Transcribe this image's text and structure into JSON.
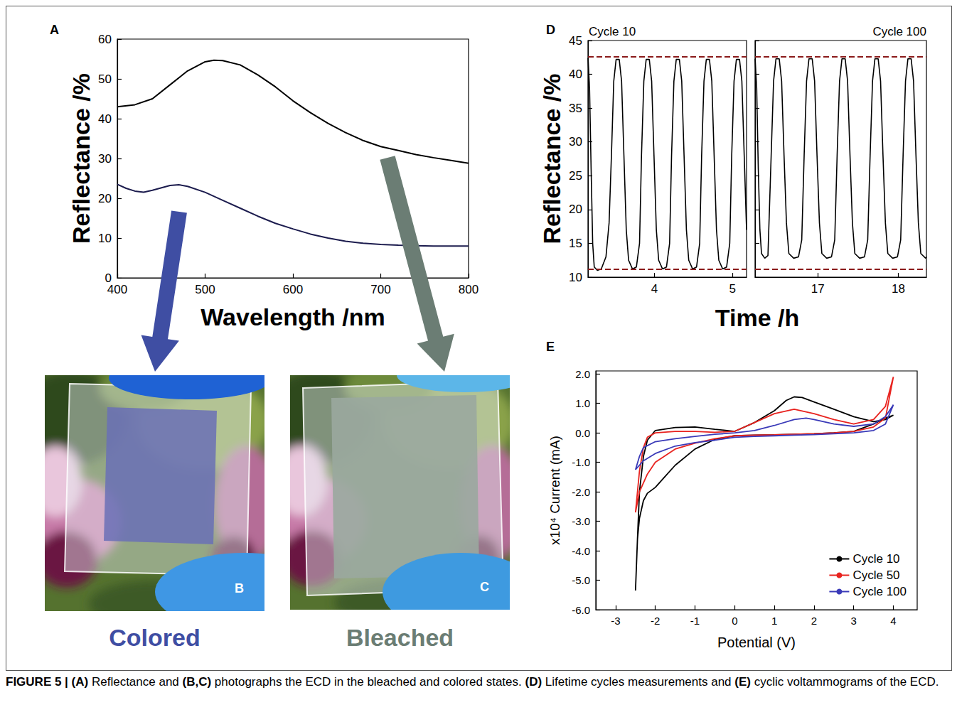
{
  "chart_data": [
    {
      "panel": "A",
      "type": "line",
      "xlabel": "Wavelength /nm",
      "ylabel": "Reflectance /%",
      "xlim": [
        400,
        800
      ],
      "xticks": [
        400,
        500,
        600,
        700,
        800
      ],
      "ylim": [
        0,
        60
      ],
      "yticks": [
        0,
        10,
        20,
        30,
        40,
        50,
        60
      ],
      "grid": false,
      "series": [
        {
          "color": "#000000",
          "x": [
            400,
            420,
            440,
            460,
            480,
            500,
            510,
            520,
            540,
            560,
            580,
            600,
            620,
            640,
            660,
            680,
            700,
            720,
            740,
            760,
            780,
            800
          ],
          "values": [
            43,
            43.5,
            45,
            48.5,
            52,
            54.3,
            54.7,
            54.6,
            53.5,
            51,
            48,
            44.5,
            41.5,
            38.8,
            36.5,
            34.5,
            33,
            32,
            31,
            30.2,
            29.5,
            28.8
          ]
        },
        {
          "color": "#1c1c4e",
          "x": [
            400,
            410,
            420,
            430,
            440,
            460,
            470,
            480,
            500,
            520,
            540,
            560,
            580,
            600,
            620,
            640,
            660,
            680,
            700,
            720,
            740,
            760,
            780,
            800
          ],
          "values": [
            23.5,
            22.5,
            21.8,
            21.5,
            22,
            23.2,
            23.4,
            23,
            21.5,
            19.5,
            17.5,
            15.5,
            13.7,
            12.3,
            11,
            10,
            9.2,
            8.7,
            8.4,
            8.2,
            8.1,
            8,
            8,
            8
          ]
        }
      ]
    },
    {
      "panel": "D",
      "type": "line",
      "xlabel": "Time /h",
      "ylabel": "Reflectance /%",
      "ylim": [
        10,
        45
      ],
      "yticks": [
        10,
        15,
        20,
        25,
        30,
        35,
        40,
        45
      ],
      "grid": false,
      "reference_lines": {
        "values": [
          42.6,
          11.2
        ],
        "color": "#8b1a1a",
        "line_style": "dashed"
      },
      "panels": [
        {
          "title": "Cycle 10",
          "xlim": [
            3.15,
            5.18
          ],
          "xticks": [
            4,
            5
          ],
          "color": "#000000",
          "x": [
            3.15,
            3.17,
            3.19,
            3.21,
            3.23,
            3.27,
            3.32,
            3.38,
            3.42,
            3.45,
            3.48,
            3.51,
            3.55,
            3.58,
            3.61,
            3.64,
            3.67,
            3.72,
            3.77,
            3.81,
            3.835,
            3.865,
            3.895,
            3.935,
            3.965,
            3.995,
            4.025,
            4.055,
            4.105,
            4.155,
            4.195,
            4.22,
            4.25,
            4.28,
            4.32,
            4.35,
            4.38,
            4.41,
            4.44,
            4.49,
            4.54,
            4.58,
            4.605,
            4.635,
            4.665,
            4.705,
            4.735,
            4.765,
            4.795,
            4.825,
            4.875,
            4.925,
            4.965,
            4.99,
            5.02,
            5.05,
            5.09,
            5.12,
            5.15,
            5.18
          ],
          "values": [
            42.4,
            38,
            26,
            15,
            11.5,
            11,
            11.2,
            13,
            18,
            28,
            39,
            42.2,
            42.2,
            39,
            28,
            17,
            12.5,
            11.2,
            11.5,
            15,
            28,
            39,
            42.2,
            42.2,
            39,
            28,
            17,
            12.5,
            11.2,
            11.5,
            15,
            28,
            39,
            42.2,
            42.2,
            39,
            28,
            17,
            12.5,
            11.2,
            11.5,
            15,
            28,
            39,
            42.2,
            42.2,
            39,
            28,
            17,
            12.5,
            11.2,
            11.5,
            15,
            28,
            39,
            42.2,
            42.2,
            39,
            28,
            17
          ]
        },
        {
          "title": "Cycle 100",
          "xlim": [
            16.22,
            18.35
          ],
          "xticks": [
            17,
            18
          ],
          "color": "#000000",
          "x": [
            16.22,
            16.24,
            16.26,
            16.28,
            16.3,
            16.34,
            16.38,
            16.42,
            16.45,
            16.48,
            16.52,
            16.55,
            16.58,
            16.61,
            16.64,
            16.7,
            16.76,
            16.8,
            16.83,
            16.86,
            16.89,
            16.93,
            16.96,
            16.99,
            17.02,
            17.05,
            17.11,
            17.17,
            17.21,
            17.24,
            17.27,
            17.3,
            17.34,
            17.37,
            17.4,
            17.43,
            17.46,
            17.52,
            17.58,
            17.62,
            17.65,
            17.68,
            17.71,
            17.75,
            17.78,
            17.81,
            17.84,
            17.87,
            17.93,
            17.99,
            18.03,
            18.06,
            18.09,
            18.12,
            18.16,
            18.19,
            18.22,
            18.25,
            18.28,
            18.34,
            18.35
          ],
          "values": [
            42.3,
            38,
            26,
            17,
            13.5,
            12.8,
            13.2,
            28,
            39,
            42.3,
            42.3,
            39,
            28,
            18,
            13.5,
            12.8,
            13,
            15.5,
            28,
            39,
            42.3,
            42.3,
            39,
            28,
            18,
            13.5,
            12.8,
            13,
            15.5,
            28,
            39,
            42.3,
            42.3,
            39,
            28,
            18,
            13.5,
            12.8,
            13,
            15.5,
            28,
            39,
            42.3,
            42.3,
            39,
            28,
            18,
            13.5,
            12.8,
            13,
            15.5,
            28,
            39,
            42.3,
            42.3,
            39,
            28,
            18,
            13.5,
            12.8,
            13
          ]
        }
      ]
    },
    {
      "panel": "E",
      "type": "line",
      "xlabel": "Potential (V)",
      "ylabel": "x10⁴ Current (mA)",
      "xlim": [
        -3.5,
        4.6
      ],
      "xticks": [
        -3,
        -2,
        -1,
        0,
        1,
        2,
        3,
        4
      ],
      "ylim": [
        -6,
        2.1
      ],
      "yticks": [
        {
          "value": -6,
          "label": "-6.0"
        },
        {
          "value": -5,
          "label": "-5.0"
        },
        {
          "value": -4,
          "label": "-4.0"
        },
        {
          "value": -3,
          "label": "-3.0"
        },
        {
          "value": -2,
          "label": "-2.0"
        },
        {
          "value": -1,
          "label": "-1.0"
        },
        {
          "value": 0,
          "label": "0.0"
        },
        {
          "value": 1,
          "label": "1.0"
        },
        {
          "value": 2,
          "label": "2.0"
        }
      ],
      "grid": false,
      "legend": "lower right",
      "series": [
        {
          "name": "Cycle 10",
          "color": "#000000",
          "x": [
            -2.5,
            -2.45,
            -2.4,
            -2.3,
            -2.2,
            -2,
            -1.5,
            -1,
            -0.5,
            0,
            0.5,
            1,
            1.3,
            1.5,
            1.7,
            2,
            2.5,
            3,
            3.5,
            3.8,
            4,
            3.8,
            3.5,
            3,
            2.5,
            2,
            1.5,
            1,
            0.5,
            0,
            -0.5,
            -1,
            -1.5,
            -1.8,
            -2,
            -2.2,
            -2.3,
            -2.4,
            -2.45,
            -2.5
          ],
          "values": [
            -5.35,
            -3.6,
            -2.0,
            -0.8,
            -0.25,
            0.08,
            0.18,
            0.2,
            0.12,
            0.05,
            0.35,
            0.75,
            1.1,
            1.22,
            1.2,
            1.05,
            0.8,
            0.55,
            0.38,
            0.45,
            0.6,
            0.5,
            0.3,
            0.05,
            0.0,
            -0.03,
            -0.05,
            -0.07,
            -0.08,
            -0.1,
            -0.22,
            -0.55,
            -1.1,
            -1.55,
            -1.85,
            -2.05,
            -2.3,
            -2.9,
            -3.6,
            -5.35
          ]
        },
        {
          "name": "Cycle 50",
          "color": "#e8231f",
          "x": [
            -2.5,
            -2.4,
            -2.3,
            -2.2,
            -2,
            -1.5,
            -1,
            -0.5,
            0,
            0.5,
            1,
            1.5,
            2,
            2.5,
            3,
            3.5,
            3.8,
            4,
            3.8,
            3.5,
            3,
            2.5,
            2,
            1.5,
            1,
            0.5,
            0,
            -0.5,
            -1,
            -1.5,
            -2,
            -2.2,
            -2.4,
            -2.5
          ],
          "values": [
            -2.7,
            -1.3,
            -0.5,
            -0.15,
            0.0,
            0.05,
            0.05,
            0.02,
            0.05,
            0.35,
            0.65,
            0.8,
            0.65,
            0.45,
            0.3,
            0.45,
            0.9,
            1.9,
            0.5,
            0.2,
            0.05,
            0.0,
            -0.03,
            -0.05,
            -0.07,
            -0.08,
            -0.1,
            -0.2,
            -0.35,
            -0.55,
            -1.0,
            -1.4,
            -2.0,
            -2.7
          ]
        },
        {
          "name": "Cycle 100",
          "color": "#3a3ab8",
          "x": [
            -2.5,
            -2.4,
            -2.3,
            -2,
            -1.5,
            -1,
            -0.5,
            0,
            0.5,
            1,
            1.5,
            1.8,
            2,
            2.5,
            3,
            3.5,
            3.8,
            4,
            3.8,
            3.5,
            3,
            2.5,
            2,
            1.5,
            1,
            0.5,
            0,
            -0.5,
            -1,
            -1.5,
            -2,
            -2.3,
            -2.5
          ],
          "values": [
            -1.25,
            -0.8,
            -0.5,
            -0.3,
            -0.2,
            -0.12,
            -0.05,
            0.0,
            0.08,
            0.25,
            0.45,
            0.5,
            0.45,
            0.3,
            0.22,
            0.3,
            0.55,
            0.95,
            0.3,
            0.08,
            0.0,
            -0.03,
            -0.06,
            -0.08,
            -0.1,
            -0.12,
            -0.15,
            -0.25,
            -0.33,
            -0.45,
            -0.7,
            -0.95,
            -1.25
          ]
        }
      ]
    }
  ],
  "photos": [
    {
      "label": "B",
      "caption": "Colored",
      "color": "#3f4ea3"
    },
    {
      "label": "C",
      "caption": "Bleached",
      "color": "#6b7d74"
    }
  ],
  "caption": {
    "label": "FIGURE 5 |",
    "text": "(A) Reflectance and (B,C) photographs the ECD in the bleached and colored states. (D) Lifetime cycles measurements and (E) cyclic voltammograms of the ECD."
  }
}
